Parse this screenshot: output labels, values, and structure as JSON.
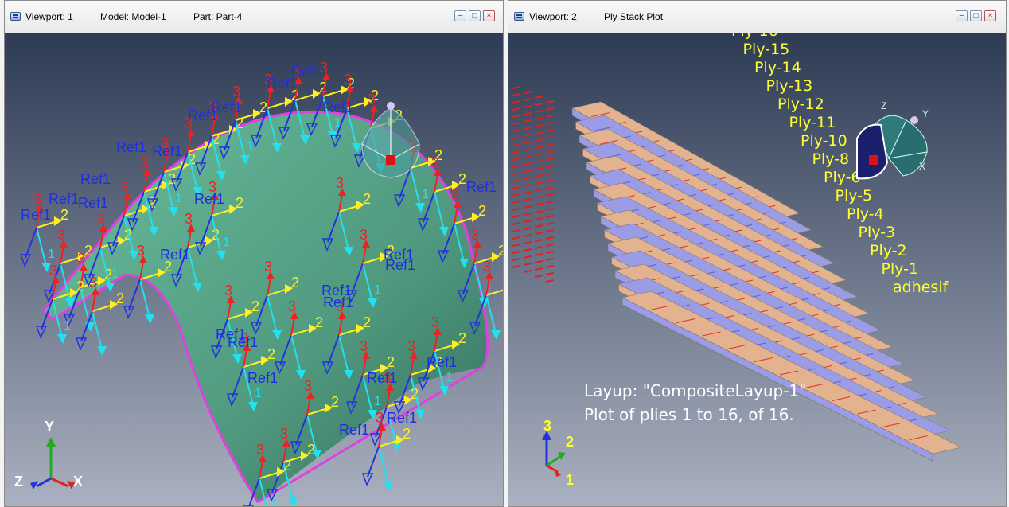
{
  "viewport1": {
    "title_viewport": "Viewport: 1",
    "title_model": "Model: Model-1",
    "title_part": "Part: Part-4",
    "btn_min": "–",
    "btn_max": "□",
    "btn_close": "×",
    "triad": {
      "y": "Y",
      "z": "Z",
      "x": "X"
    },
    "ref_label": "Ref1"
  },
  "viewport2": {
    "title_viewport": "Viewport: 2",
    "title_plot": "Ply Stack Plot",
    "btn_min": "–",
    "btn_max": "□",
    "btn_close": "×",
    "ply_labels": [
      "adhesif",
      "Ply-1",
      "Ply-2",
      "Ply-3",
      "Ply-4",
      "Ply-5",
      "Ply-6",
      "Ply-8",
      "Ply-10",
      "Ply-11",
      "Ply-12",
      "Ply-13",
      "Ply-14",
      "Ply-15",
      "Ply-16"
    ],
    "layup_text": "Layup: \"CompositeLayup-1\"",
    "plot_text": "Plot of plies 1 to 16, of 16.",
    "triad": {
      "three": "3",
      "two": "2",
      "one": "1"
    },
    "material_axes": {
      "z": "Z",
      "y": "Y",
      "x": "X"
    }
  },
  "colors": {
    "bg_top": "#2d3b54",
    "bg_bottom": "#aab1c0",
    "surface": "#5aa88a",
    "edge": "#e040e0",
    "ply_lavender": "#9a9ce6",
    "ply_tan": "#e3b28e",
    "ply_text": "#ffff30",
    "hatch": "#e03030"
  }
}
